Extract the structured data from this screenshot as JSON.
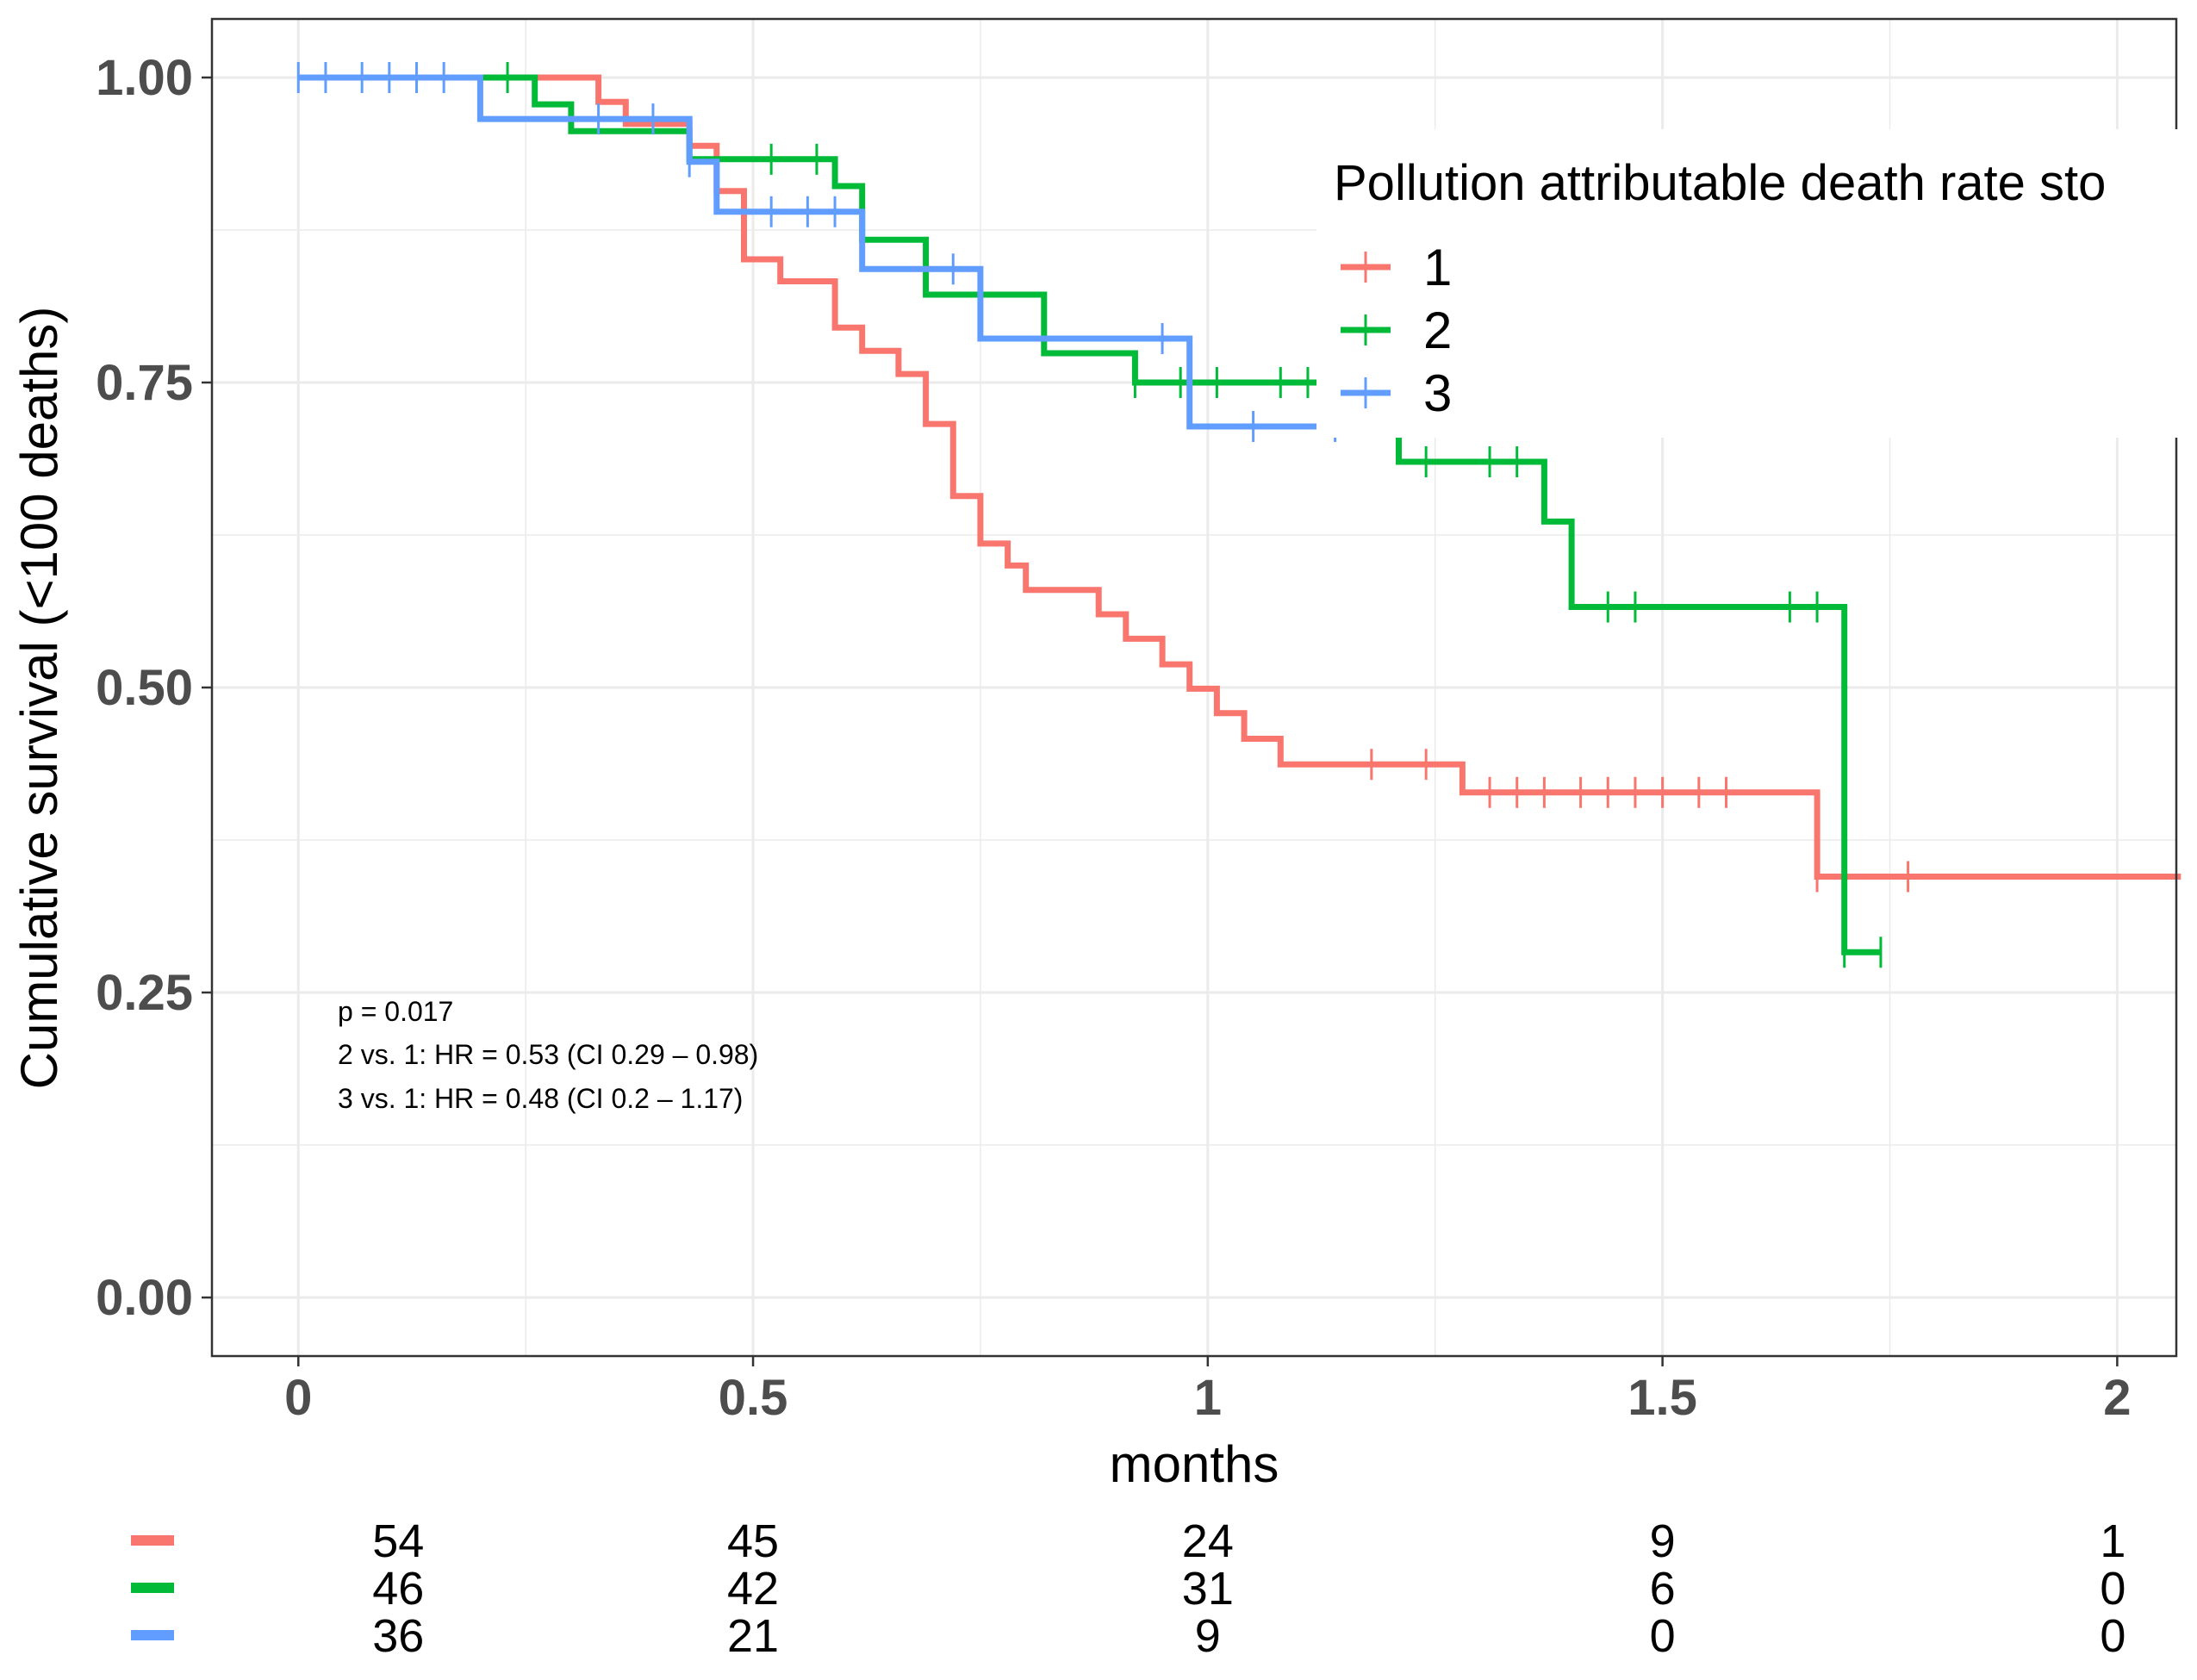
{
  "chart_data": {
    "type": "line",
    "subtype": "kaplan-meier step",
    "xlabel": "months",
    "ylabel": "Cumulative survival (<100 deaths)",
    "xlim": [
      -0.095,
      2.065
    ],
    "ylim": [
      -0.048,
      1.048
    ],
    "x_ticks": [
      0,
      0.5,
      1,
      1.5,
      2
    ],
    "x_tick_labels": [
      "0",
      "0.5",
      "1",
      "1.5",
      "2"
    ],
    "y_ticks": [
      0,
      0.25,
      0.5,
      0.75,
      1
    ],
    "y_tick_labels": [
      "0.00",
      "0.25",
      "0.50",
      "0.75",
      "1.00"
    ],
    "grid": true,
    "legend": {
      "title": "Pollution attributable death rate sto",
      "placement": "top-right",
      "entries": [
        "1",
        "2",
        "3"
      ]
    },
    "colors": {
      "1": "#F8766D",
      "2": "#00BA38",
      "3": "#619CFF",
      "grid": "#ebebeb",
      "axis_text": "#4d4d4d"
    },
    "series": [
      {
        "name": "1",
        "color": "#F8766D",
        "steps": [
          [
            0,
            1.0
          ],
          [
            0.33,
            0.98
          ],
          [
            0.36,
            0.962
          ],
          [
            0.43,
            0.944
          ],
          [
            0.46,
            0.907
          ],
          [
            0.49,
            0.851
          ],
          [
            0.53,
            0.833
          ],
          [
            0.59,
            0.795
          ],
          [
            0.62,
            0.776
          ],
          [
            0.66,
            0.757
          ],
          [
            0.69,
            0.716
          ],
          [
            0.72,
            0.657
          ],
          [
            0.75,
            0.618
          ],
          [
            0.78,
            0.6
          ],
          [
            0.8,
            0.58
          ],
          [
            0.88,
            0.56
          ],
          [
            0.91,
            0.54
          ],
          [
            0.95,
            0.519
          ],
          [
            0.98,
            0.499
          ],
          [
            1.01,
            0.479
          ],
          [
            1.04,
            0.458
          ],
          [
            1.08,
            0.437
          ],
          [
            1.28,
            0.414
          ],
          [
            1.67,
            0.345
          ],
          [
            2.07,
            0.345
          ]
        ],
        "censor_times": [
          1.18,
          1.24,
          1.31,
          1.34,
          1.37,
          1.41,
          1.44,
          1.47,
          1.5,
          1.54,
          1.57,
          1.67,
          1.7,
          1.77
        ]
      },
      {
        "name": "2",
        "color": "#00BA38",
        "steps": [
          [
            0,
            1.0
          ],
          [
            0.26,
            0.978
          ],
          [
            0.3,
            0.956
          ],
          [
            0.43,
            0.933
          ],
          [
            0.59,
            0.911
          ],
          [
            0.62,
            0.867
          ],
          [
            0.69,
            0.822
          ],
          [
            0.82,
            0.774
          ],
          [
            0.92,
            0.75
          ],
          [
            1.21,
            0.685
          ],
          [
            1.37,
            0.636
          ],
          [
            1.4,
            0.566
          ],
          [
            1.7,
            0.283
          ],
          [
            1.74,
            0.283
          ]
        ],
        "censor_times": [
          0.23,
          0.52,
          0.57,
          0.92,
          0.97,
          1.01,
          1.08,
          1.11,
          1.14,
          1.24,
          1.31,
          1.34,
          1.44,
          1.47,
          1.64,
          1.67,
          1.7,
          1.74
        ]
      },
      {
        "name": "3",
        "color": "#619CFF",
        "steps": [
          [
            0,
            1.0
          ],
          [
            0.2,
            0.966
          ],
          [
            0.43,
            0.931
          ],
          [
            0.46,
            0.89
          ],
          [
            0.62,
            0.843
          ],
          [
            0.75,
            0.786
          ],
          [
            0.98,
            0.714
          ],
          [
            1.14,
            0.714
          ]
        ],
        "censor_times": [
          0,
          0.03,
          0.07,
          0.1,
          0.13,
          0.16,
          0.33,
          0.39,
          0.43,
          0.52,
          0.56,
          0.59,
          0.72,
          0.95,
          1.05,
          1.14
        ]
      }
    ],
    "annotations": [
      "p = 0.017",
      "2 vs. 1: HR = 0.53 (CI 0.29 – 0.98)",
      "3 vs. 1: HR = 0.48 (CI 0.2 – 1.17)"
    ],
    "risk_table": {
      "times": [
        0,
        0.5,
        1,
        1.5,
        2
      ],
      "rows": [
        {
          "strata": "1",
          "color": "#F8766D",
          "counts": [
            "54",
            "45",
            "24",
            "9",
            "1"
          ]
        },
        {
          "strata": "2",
          "color": "#00BA38",
          "counts": [
            "46",
            "42",
            "31",
            "6",
            "0"
          ]
        },
        {
          "strata": "3",
          "color": "#619CFF",
          "counts": [
            "36",
            "21",
            "9",
            "0",
            "0"
          ]
        }
      ]
    }
  }
}
